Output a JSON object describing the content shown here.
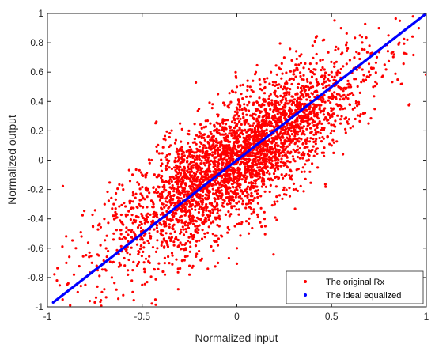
{
  "chart_data": {
    "type": "scatter",
    "title": "",
    "xlabel": "Normalized input",
    "ylabel": "Normalized output",
    "xlim": [
      -1,
      1
    ],
    "ylim": [
      -1,
      1
    ],
    "xticks": [
      -1,
      -0.5,
      0,
      0.5,
      1
    ],
    "xtick_labels": [
      "-1",
      "-0.5",
      "0",
      "0.5",
      "1"
    ],
    "yticks": [
      -1,
      -0.8,
      -0.6,
      -0.4,
      -0.2,
      0,
      0.2,
      0.4,
      0.6,
      0.8,
      1
    ],
    "ytick_labels": [
      "-1",
      "-0.8",
      "-0.6",
      "-0.4",
      "-0.2",
      "0",
      "0.2",
      "0.4",
      "0.6",
      "0.8",
      "1"
    ],
    "grid": false,
    "legend_position": "bottom-right",
    "series": [
      {
        "name": "The original Rx",
        "color": "#ff0000",
        "marker": "dot",
        "description_shape": "dense elliptical cloud along y = x",
        "points": [
          [
            -0.95,
            -0.82
          ],
          [
            -0.92,
            -0.95
          ],
          [
            -0.9,
            -0.7
          ],
          [
            -0.88,
            -0.99
          ],
          [
            -0.86,
            -0.78
          ],
          [
            -0.85,
            -0.6
          ],
          [
            -0.84,
            -0.9
          ],
          [
            -0.82,
            -0.52
          ],
          [
            -0.8,
            -0.85
          ],
          [
            -0.78,
            -0.66
          ],
          [
            -0.76,
            -0.45
          ],
          [
            -0.75,
            -0.97
          ],
          [
            -0.74,
            -0.72
          ],
          [
            -0.72,
            -0.58
          ],
          [
            -0.7,
            -0.88
          ],
          [
            -0.7,
            -0.4
          ],
          [
            -0.68,
            -0.62
          ],
          [
            -0.66,
            -0.8
          ],
          [
            -0.65,
            -0.5
          ],
          [
            -0.64,
            -0.33
          ],
          [
            -0.62,
            -0.7
          ],
          [
            -0.6,
            -0.92
          ],
          [
            -0.6,
            -0.44
          ],
          [
            -0.58,
            -0.58
          ],
          [
            -0.56,
            -0.28
          ],
          [
            -0.55,
            -0.75
          ],
          [
            -0.54,
            -0.5
          ],
          [
            -0.52,
            -0.62
          ],
          [
            -0.5,
            -0.38
          ],
          [
            -0.5,
            -0.85
          ],
          [
            -0.48,
            -0.2
          ],
          [
            -0.47,
            -0.55
          ],
          [
            -0.46,
            -0.7
          ],
          [
            -0.45,
            -0.42
          ],
          [
            -0.44,
            -0.3
          ],
          [
            -0.43,
            -0.95
          ],
          [
            -0.42,
            -0.6
          ],
          [
            -0.4,
            -0.12
          ],
          [
            -0.4,
            -0.48
          ],
          [
            -0.38,
            -0.78
          ],
          [
            -0.37,
            -0.35
          ],
          [
            -0.36,
            -0.22
          ],
          [
            -0.35,
            -0.55
          ],
          [
            -0.34,
            -0.65
          ],
          [
            -0.33,
            -0.05
          ],
          [
            -0.32,
            -0.4
          ],
          [
            -0.31,
            -0.88
          ],
          [
            -0.3,
            -0.28
          ],
          [
            -0.3,
            -0.5
          ],
          [
            -0.29,
            -0.15
          ],
          [
            -0.28,
            0.05
          ],
          [
            -0.27,
            -0.6
          ],
          [
            -0.26,
            -0.35
          ],
          [
            -0.25,
            -0.72
          ],
          [
            -0.24,
            -0.2
          ],
          [
            -0.23,
            0.12
          ],
          [
            -0.22,
            -0.45
          ],
          [
            -0.21,
            -0.08
          ],
          [
            -0.2,
            -0.3
          ],
          [
            -0.2,
            -0.62
          ],
          [
            -0.19,
            0.18
          ],
          [
            -0.18,
            -0.2
          ],
          [
            -0.17,
            -0.5
          ],
          [
            -0.16,
            0.02
          ],
          [
            -0.15,
            -0.38
          ],
          [
            -0.14,
            0.25
          ],
          [
            -0.13,
            -0.12
          ],
          [
            -0.12,
            -0.55
          ],
          [
            -0.11,
            0.1
          ],
          [
            -0.1,
            -0.25
          ],
          [
            -0.1,
            0.3
          ],
          [
            -0.09,
            -0.4
          ],
          [
            -0.08,
            0.05
          ],
          [
            -0.07,
            -0.15
          ],
          [
            -0.06,
            0.22
          ],
          [
            -0.05,
            -0.3
          ],
          [
            -0.04,
            0.38
          ],
          [
            -0.03,
            -0.05
          ],
          [
            -0.02,
            0.15
          ],
          [
            -0.01,
            -0.45
          ],
          [
            0,
            0.05
          ],
          [
            0,
            -0.2
          ],
          [
            0.01,
            0.3
          ],
          [
            0.02,
            -0.1
          ],
          [
            0.03,
            0.42
          ],
          [
            0.04,
            0.12
          ],
          [
            0.05,
            -0.3
          ],
          [
            0.06,
            0.2
          ],
          [
            0.07,
            0.5
          ],
          [
            0.08,
            -0.02
          ],
          [
            0.09,
            0.28
          ],
          [
            0.1,
            -0.18
          ],
          [
            0.1,
            0.35
          ],
          [
            0.11,
            0.08
          ],
          [
            0.12,
            0.55
          ],
          [
            0.13,
            0.18
          ],
          [
            0.14,
            -0.1
          ],
          [
            0.15,
            0.4
          ],
          [
            0.16,
            0.25
          ],
          [
            0.17,
            0.02
          ],
          [
            0.18,
            0.6
          ],
          [
            0.19,
            0.3
          ],
          [
            0.2,
            0.1
          ],
          [
            0.2,
            0.45
          ],
          [
            0.21,
            -0.05
          ],
          [
            0.22,
            0.35
          ],
          [
            0.23,
            0.62
          ],
          [
            0.24,
            0.18
          ],
          [
            0.25,
            0.5
          ],
          [
            0.26,
            0.28
          ],
          [
            0.27,
            0.05
          ],
          [
            0.28,
            0.4
          ],
          [
            0.29,
            0.68
          ],
          [
            0.3,
            0.22
          ],
          [
            0.3,
            0.55
          ],
          [
            0.31,
            0.12
          ],
          [
            0.32,
            0.45
          ],
          [
            0.33,
            0.3
          ],
          [
            0.34,
            0.72
          ],
          [
            0.35,
            0.2
          ],
          [
            0.36,
            0.5
          ],
          [
            0.37,
            0.38
          ],
          [
            0.38,
            0.62
          ],
          [
            0.39,
            0.15
          ],
          [
            0.4,
            0.45
          ],
          [
            0.4,
            0.78
          ],
          [
            0.41,
            0.3
          ],
          [
            0.42,
            0.55
          ],
          [
            0.43,
            0.25
          ],
          [
            0.44,
            0.68
          ],
          [
            0.45,
            0.4
          ],
          [
            0.46,
            0.82
          ],
          [
            0.47,
            0.5
          ],
          [
            0.48,
            0.32
          ],
          [
            0.5,
            0.6
          ],
          [
            0.5,
            0.2
          ],
          [
            0.52,
            0.75
          ],
          [
            0.53,
            0.45
          ],
          [
            0.55,
            0.62
          ],
          [
            0.56,
            0.35
          ],
          [
            0.58,
            0.8
          ],
          [
            0.6,
            0.5
          ],
          [
            0.62,
            0.7
          ],
          [
            0.63,
            0.4
          ],
          [
            0.65,
            0.85
          ],
          [
            0.67,
            0.58
          ],
          [
            0.7,
            0.78
          ],
          [
            0.72,
            0.5
          ],
          [
            0.75,
            0.9
          ],
          [
            0.78,
            0.65
          ],
          [
            0.8,
            0.85
          ],
          [
            0.83,
            0.72
          ],
          [
            0.86,
            0.95
          ],
          [
            0.9,
            0.82
          ],
          [
            0.93,
            0.98
          ],
          [
            0.96,
            0.9
          ],
          [
            -0.6,
            -0.2
          ],
          [
            -0.5,
            -0.1
          ],
          [
            -0.45,
            0.0
          ],
          [
            -0.35,
            0.1
          ],
          [
            0.35,
            -0.05
          ],
          [
            0.45,
            0.05
          ],
          [
            0.5,
            0.1
          ],
          [
            0.6,
            0.22
          ],
          [
            -0.2,
            0.35
          ],
          [
            -0.1,
            0.45
          ],
          [
            0.0,
            0.5
          ],
          [
            0.1,
            0.6
          ],
          [
            0.2,
            -0.3
          ],
          [
            0.0,
            -0.6
          ],
          [
            -0.1,
            -0.7
          ],
          [
            0.15,
            -0.45
          ],
          [
            -0.3,
            0.25
          ],
          [
            0.3,
            -0.2
          ],
          [
            0.25,
            0.7
          ],
          [
            -0.25,
            -0.78
          ],
          [
            0.55,
            0.9
          ],
          [
            -0.55,
            -0.9
          ],
          [
            0.65,
            0.3
          ],
          [
            -0.65,
            -0.3
          ]
        ]
      },
      {
        "name": "The ideal equalized",
        "color": "#0000ff",
        "marker": "dot",
        "description_shape": "straight line y = x",
        "points": [
          [
            -0.97,
            -0.97
          ],
          [
            1,
            1
          ]
        ]
      }
    ]
  }
}
